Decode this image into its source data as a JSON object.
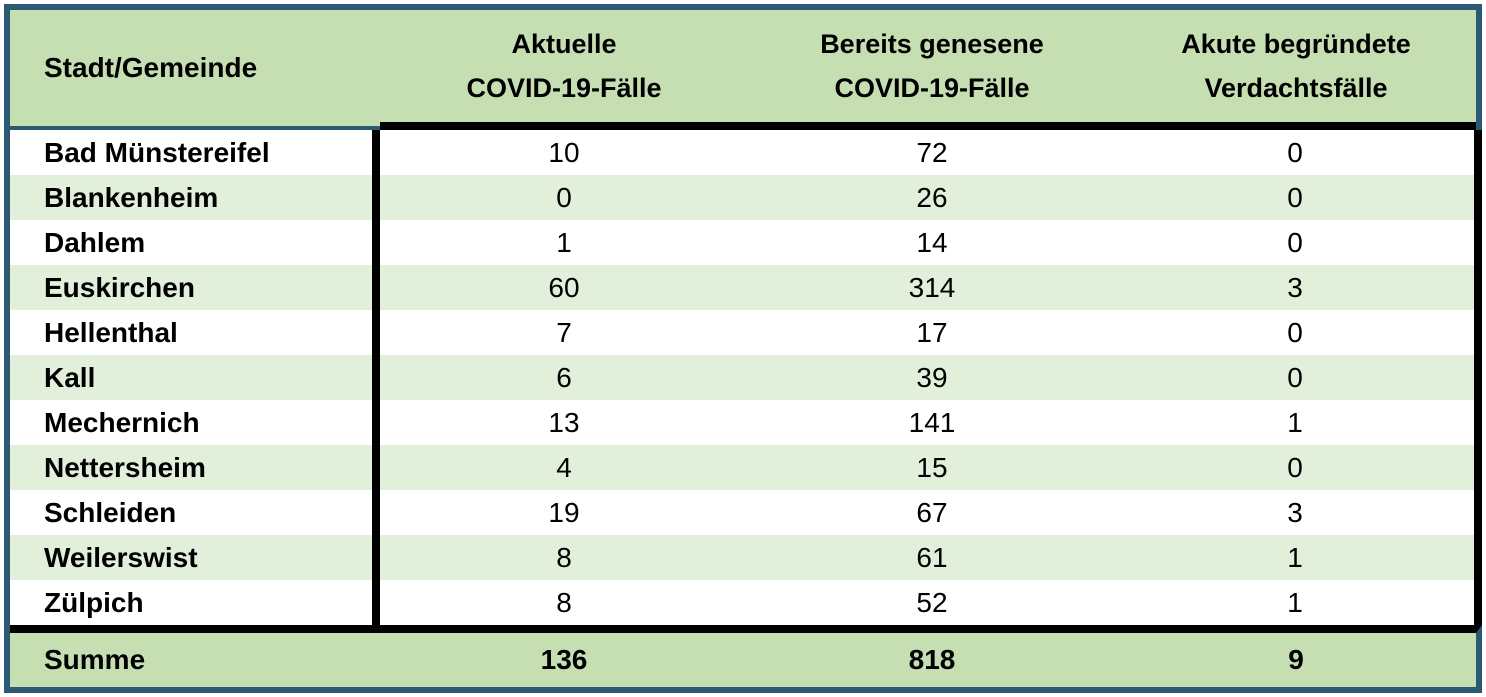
{
  "table": {
    "header": {
      "col1": "Stadt/Gemeinde",
      "col2": {
        "line1": "Aktuelle",
        "line2": "COVID-19-Fälle"
      },
      "col3": {
        "line1": "Bereits genesene",
        "line2": "COVID-19-Fälle"
      },
      "col4": {
        "line1": "Akute begründete",
        "line2": "Verdachtsfälle"
      }
    },
    "rows": [
      {
        "name": "Bad Münstereifel",
        "current": "10",
        "recovered": "72",
        "suspected": "0"
      },
      {
        "name": "Blankenheim",
        "current": "0",
        "recovered": "26",
        "suspected": "0"
      },
      {
        "name": "Dahlem",
        "current": "1",
        "recovered": "14",
        "suspected": "0"
      },
      {
        "name": "Euskirchen",
        "current": "60",
        "recovered": "314",
        "suspected": "3"
      },
      {
        "name": "Hellenthal",
        "current": "7",
        "recovered": "17",
        "suspected": "0"
      },
      {
        "name": "Kall",
        "current": "6",
        "recovered": "39",
        "suspected": "0"
      },
      {
        "name": "Mechernich",
        "current": "13",
        "recovered": "141",
        "suspected": "1"
      },
      {
        "name": "Nettersheim",
        "current": "4",
        "recovered": "15",
        "suspected": "0"
      },
      {
        "name": "Schleiden",
        "current": "19",
        "recovered": "67",
        "suspected": "3"
      },
      {
        "name": "Weilerswist",
        "current": "8",
        "recovered": "61",
        "suspected": "1"
      },
      {
        "name": "Zülpich",
        "current": "8",
        "recovered": "52",
        "suspected": "1"
      }
    ],
    "total": {
      "label": "Summe",
      "current": "136",
      "recovered": "818",
      "suspected": "9"
    }
  },
  "colors": {
    "outer_border_blue": "#2b5872",
    "header_green": "#c6dfb2",
    "stripe_green": "#e2efda",
    "divider_black": "#000000",
    "row_white": "#ffffff",
    "text": "#000000"
  }
}
